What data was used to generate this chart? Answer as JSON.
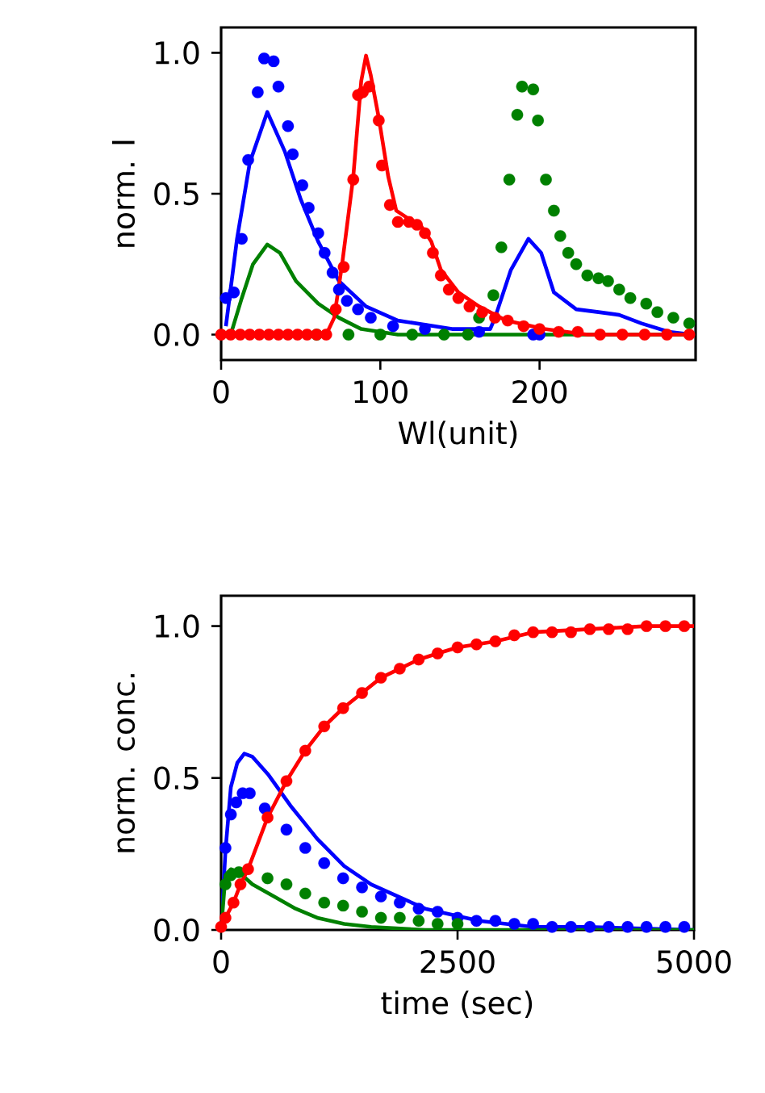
{
  "chart_data": [
    {
      "type": "scatter",
      "xlabel": "Wl(unit)",
      "ylabel": "norm. I",
      "xlim": [
        0,
        298
      ],
      "ylim": [
        -0.09,
        1.09
      ],
      "xticks": [
        0,
        100,
        200
      ],
      "yticks": [
        {
          "value": 0,
          "label": "0.0"
        },
        {
          "value": 0.5,
          "label": "0.5"
        },
        {
          "value": 1,
          "label": "1.0"
        }
      ],
      "legend": false,
      "grid": false,
      "series": [
        {
          "color": "#0000ff",
          "x": [
            3,
            8,
            13,
            17,
            23,
            27,
            33,
            36,
            42,
            45,
            51,
            55,
            61,
            65,
            70,
            74,
            79,
            86,
            94,
            108,
            128,
            162,
            196,
            200
          ],
          "values": [
            0.13,
            0.15,
            0.34,
            0.62,
            0.86,
            0.98,
            0.97,
            0.88,
            0.74,
            0.64,
            0.53,
            0.45,
            0.36,
            0.29,
            0.22,
            0.16,
            0.12,
            0.09,
            0.06,
            0.03,
            0.02,
            0.01,
            0.0,
            0.0
          ]
        },
        {
          "color": "#008000",
          "x": [
            60,
            80,
            100,
            120,
            140,
            155,
            162,
            171,
            176,
            181,
            186,
            189,
            196,
            199,
            204,
            209,
            213,
            218,
            223,
            230,
            237,
            243,
            250,
            257,
            267,
            274,
            284,
            294
          ],
          "values": [
            0,
            0,
            0,
            0,
            0,
            0,
            0.06,
            0.14,
            0.31,
            0.55,
            0.78,
            0.88,
            0.87,
            0.76,
            0.55,
            0.44,
            0.35,
            0.29,
            0.25,
            0.21,
            0.2,
            0.19,
            0.16,
            0.13,
            0.11,
            0.08,
            0.06,
            0.04
          ]
        },
        {
          "type": "line",
          "marker": "none",
          "color": "#0000ff",
          "x": [
            3,
            10,
            18,
            29,
            40,
            50,
            61,
            74,
            91,
            111,
            145,
            169,
            172,
            182,
            193,
            201,
            209,
            223,
            237,
            250,
            264,
            281,
            296
          ],
          "values": [
            0.03,
            0.34,
            0.61,
            0.79,
            0.65,
            0.48,
            0.33,
            0.19,
            0.1,
            0.05,
            0.02,
            0.02,
            0.06,
            0.23,
            0.34,
            0.29,
            0.15,
            0.09,
            0.08,
            0.07,
            0.04,
            0.01,
            0
          ]
        },
        {
          "type": "line",
          "marker": "none",
          "color": "#008000",
          "x": [
            6,
            13,
            20,
            29,
            37,
            47,
            61,
            74,
            88,
            111,
            296
          ],
          "values": [
            0,
            0.13,
            0.25,
            0.32,
            0.29,
            0.19,
            0.11,
            0.06,
            0.02,
            0,
            0
          ]
        },
        {
          "type": "line",
          "marker": "none",
          "color": "#ff0000",
          "x": [
            0,
            66,
            71,
            76,
            83,
            88,
            91,
            94,
            99,
            105,
            110,
            118,
            125,
            132,
            138,
            149,
            162,
            179,
            203,
            230,
            296
          ],
          "values": [
            0,
            0,
            0.06,
            0.25,
            0.56,
            0.9,
            0.99,
            0.92,
            0.77,
            0.56,
            0.44,
            0.41,
            0.39,
            0.33,
            0.23,
            0.15,
            0.1,
            0.05,
            0.02,
            0,
            0
          ]
        },
        {
          "color": "#ff0000",
          "x": [
            0,
            6,
            12,
            18,
            24,
            30,
            36,
            42,
            48,
            54,
            60,
            66,
            72,
            77,
            83,
            86,
            89,
            93,
            99,
            101,
            106,
            111,
            118,
            123,
            128,
            133,
            138,
            143,
            149,
            156,
            164,
            172,
            180,
            190,
            200,
            212,
            224,
            238,
            252,
            266,
            280,
            294
          ],
          "values": [
            0,
            0,
            0,
            0,
            0,
            0,
            0,
            0,
            0,
            0,
            0,
            0,
            0.09,
            0.24,
            0.55,
            0.85,
            0.86,
            0.88,
            0.76,
            0.6,
            0.46,
            0.4,
            0.4,
            0.39,
            0.36,
            0.29,
            0.21,
            0.16,
            0.13,
            0.1,
            0.08,
            0.06,
            0.05,
            0.03,
            0.02,
            0.01,
            0.01,
            0,
            0,
            0,
            0,
            0
          ]
        }
      ]
    },
    {
      "type": "scatter",
      "xlabel": "time (sec)",
      "ylabel": "norm. conc.",
      "xlim": [
        0,
        5000
      ],
      "ylim": [
        0,
        1.1
      ],
      "xticks": [
        0,
        2500,
        5000
      ],
      "yticks": [
        {
          "value": 0,
          "label": "0.0"
        },
        {
          "value": 0.5,
          "label": "0.5"
        },
        {
          "value": 1,
          "label": "1.0"
        }
      ],
      "legend": false,
      "grid": false,
      "series": [
        {
          "type": "line",
          "marker": "none",
          "color": "#0000ff",
          "x": [
            0,
            46,
            103,
            171,
            245,
            331,
            502,
            731,
            1016,
            1301,
            1587,
            1872,
            2158,
            2443,
            2728,
            3299,
            3870,
            5000
          ],
          "values": [
            0,
            0.26,
            0.47,
            0.55,
            0.58,
            0.57,
            0.51,
            0.41,
            0.3,
            0.21,
            0.15,
            0.11,
            0.07,
            0.05,
            0.03,
            0.01,
            0.01,
            0
          ]
        },
        {
          "type": "line",
          "marker": "none",
          "color": "#008000",
          "x": [
            0,
            46,
            103,
            188,
            331,
            559,
            788,
            1016,
            1301,
            1587,
            2158,
            5000
          ],
          "values": [
            0,
            0.18,
            0.2,
            0.19,
            0.15,
            0.11,
            0.07,
            0.04,
            0.02,
            0.01,
            0,
            0
          ]
        },
        {
          "color": "#0000ff",
          "x": [
            46,
            103,
            160,
            228,
            303,
            462,
            691,
            890,
            1090,
            1290,
            1490,
            1690,
            1889,
            2089,
            2289,
            2500,
            2700,
            2900,
            3100,
            3299,
            3499,
            3699,
            3899,
            4098,
            4298,
            4498,
            4698,
            4897
          ],
          "values": [
            0.27,
            0.38,
            0.42,
            0.45,
            0.45,
            0.4,
            0.33,
            0.27,
            0.22,
            0.17,
            0.14,
            0.11,
            0.09,
            0.07,
            0.06,
            0.04,
            0.03,
            0.03,
            0.02,
            0.02,
            0.01,
            0.01,
            0.01,
            0.01,
            0.01,
            0.01,
            0.01,
            0.01
          ]
        },
        {
          "color": "#008000",
          "x": [
            46,
            103,
            188,
            274,
            491,
            691,
            890,
            1090,
            1290,
            1490,
            1690,
            1889,
            2089,
            2289,
            2500
          ],
          "values": [
            0.15,
            0.18,
            0.19,
            null,
            0.17,
            0.15,
            0.12,
            0.09,
            0.08,
            0.06,
            0.04,
            0.04,
            0.03,
            0.02,
            0.02
          ]
        },
        {
          "type": "line",
          "marker": "none",
          "color": "#ff0000",
          "x": [
            0,
            46,
            131,
            205,
            285,
            491,
            691,
            890,
            1090,
            1290,
            1490,
            1690,
            1889,
            2089,
            2289,
            2500,
            2900,
            3299,
            3899,
            4498,
            5000
          ],
          "values": [
            0,
            0.04,
            0.09,
            0.15,
            0.2,
            0.37,
            0.49,
            0.59,
            0.67,
            0.73,
            0.78,
            0.83,
            0.86,
            0.89,
            0.91,
            0.93,
            0.95,
            0.98,
            0.99,
            1.0,
            1.0
          ]
        },
        {
          "color": "#ff0000",
          "x": [
            0,
            46,
            131,
            205,
            285,
            491,
            691,
            890,
            1090,
            1290,
            1490,
            1690,
            1889,
            2089,
            2289,
            2500,
            2700,
            2900,
            3100,
            3299,
            3499,
            3699,
            3899,
            4098,
            4298,
            4498,
            4698,
            4897
          ],
          "values": [
            0.01,
            0.04,
            0.09,
            0.15,
            0.2,
            0.37,
            0.49,
            0.59,
            0.67,
            0.73,
            0.78,
            0.83,
            0.86,
            0.89,
            0.91,
            0.93,
            0.94,
            0.95,
            0.97,
            0.98,
            0.98,
            0.98,
            0.99,
            0.99,
            0.99,
            1.0,
            1.0,
            1.0
          ]
        }
      ]
    }
  ]
}
